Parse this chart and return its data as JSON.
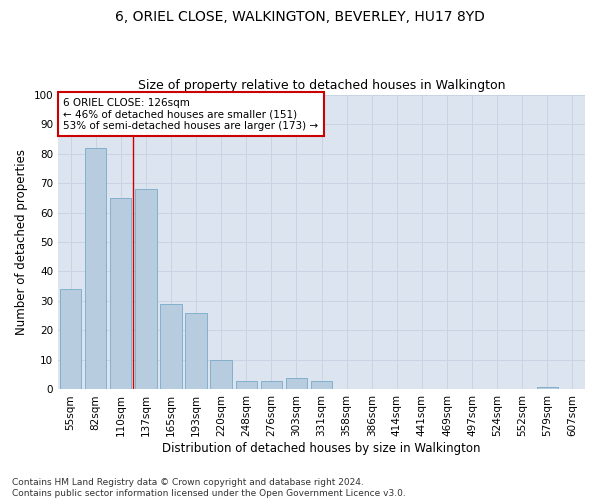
{
  "title": "6, ORIEL CLOSE, WALKINGTON, BEVERLEY, HU17 8YD",
  "subtitle": "Size of property relative to detached houses in Walkington",
  "xlabel": "Distribution of detached houses by size in Walkington",
  "ylabel": "Number of detached properties",
  "categories": [
    "55sqm",
    "82sqm",
    "110sqm",
    "137sqm",
    "165sqm",
    "193sqm",
    "220sqm",
    "248sqm",
    "276sqm",
    "303sqm",
    "331sqm",
    "358sqm",
    "386sqm",
    "414sqm",
    "441sqm",
    "469sqm",
    "497sqm",
    "524sqm",
    "552sqm",
    "579sqm",
    "607sqm"
  ],
  "values": [
    34,
    82,
    65,
    68,
    29,
    26,
    10,
    3,
    3,
    4,
    3,
    0,
    0,
    0,
    0,
    0,
    0,
    0,
    0,
    1,
    0
  ],
  "bar_color": "#b8ccdf",
  "bar_edge_color": "#7aaac8",
  "grid_color": "#c8d4e4",
  "background_color": "#dce4f0",
  "vline_x": 2.5,
  "vline_color": "#cc0000",
  "annotation_text": "6 ORIEL CLOSE: 126sqm\n← 46% of detached houses are smaller (151)\n53% of semi-detached houses are larger (173) →",
  "annotation_box_color": "#ffffff",
  "annotation_box_edge": "#cc0000",
  "ylim": [
    0,
    100
  ],
  "yticks": [
    0,
    10,
    20,
    30,
    40,
    50,
    60,
    70,
    80,
    90,
    100
  ],
  "footnote": "Contains HM Land Registry data © Crown copyright and database right 2024.\nContains public sector information licensed under the Open Government Licence v3.0.",
  "title_fontsize": 10,
  "subtitle_fontsize": 9,
  "xlabel_fontsize": 8.5,
  "ylabel_fontsize": 8.5,
  "tick_fontsize": 7.5,
  "annotation_fontsize": 7.5,
  "footnote_fontsize": 6.5
}
